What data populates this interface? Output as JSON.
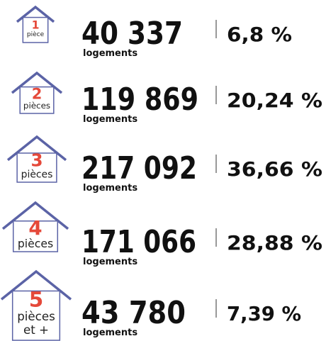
{
  "rows": [
    {
      "number": "1",
      "label": [
        "pièce"
      ],
      "count": "40 337",
      "unit": "logements",
      "percent": "6,8 %"
    },
    {
      "number": "2",
      "label": [
        "pièces"
      ],
      "count": "119 869",
      "unit": "logements",
      "percent": "20,24 %"
    },
    {
      "number": "3",
      "label": [
        "pièces"
      ],
      "count": "217 092",
      "unit": "logements",
      "percent": "36,66 %"
    },
    {
      "number": "4",
      "label": [
        "pièces"
      ],
      "count": "171 066",
      "unit": "logements",
      "percent": "28,88 %"
    },
    {
      "number": "5",
      "label": [
        "pièces",
        "et +"
      ],
      "count": "43 780",
      "unit": "logements",
      "percent": "7,39 %"
    }
  ]
}
